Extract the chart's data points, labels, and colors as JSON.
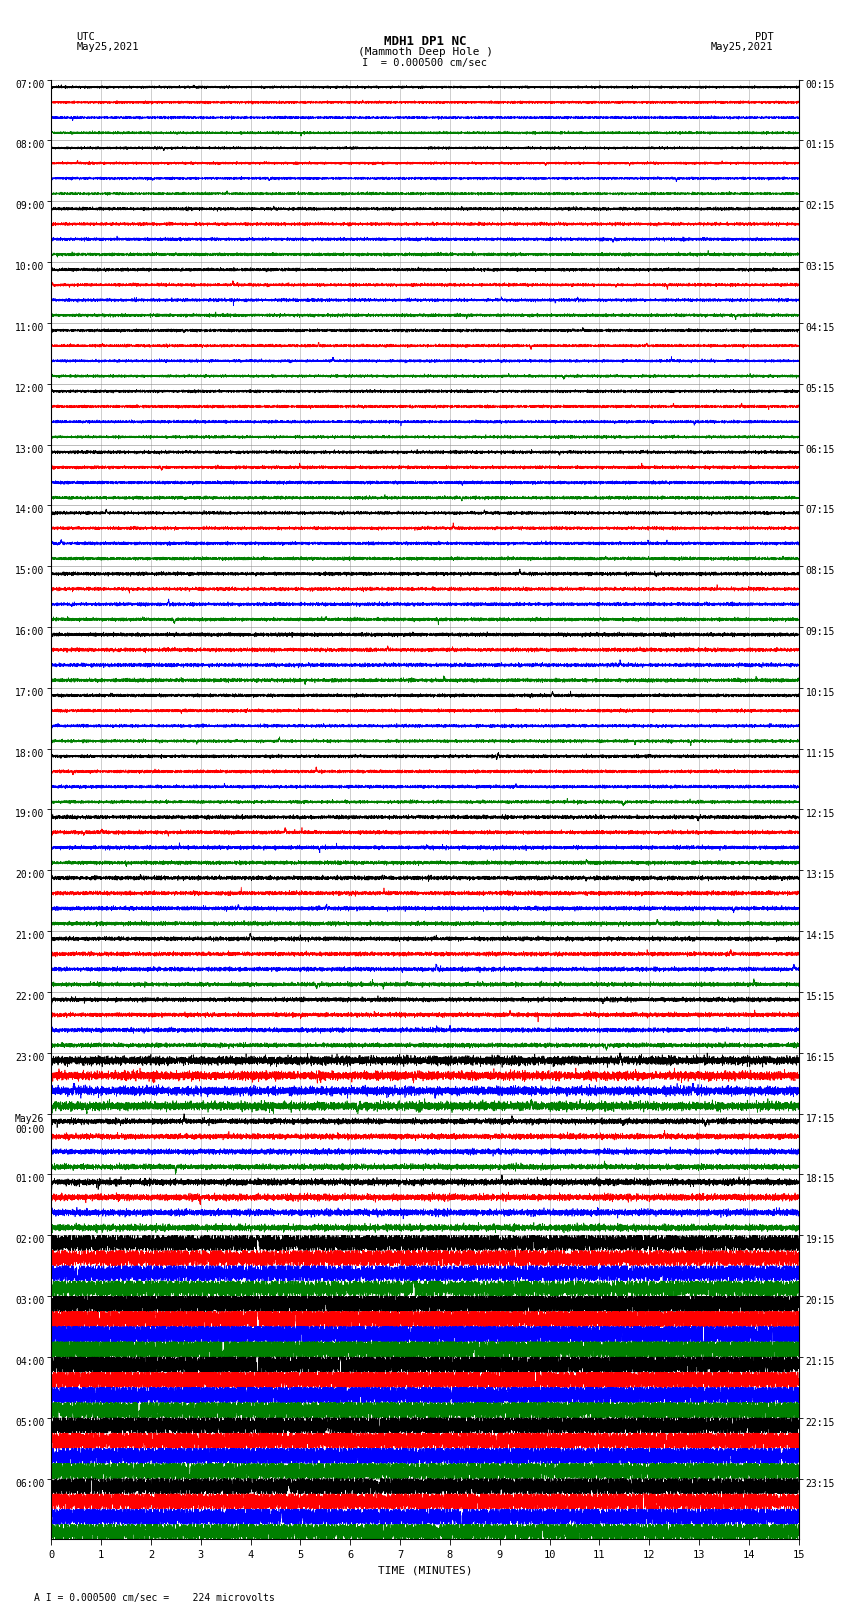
{
  "title_line1": "MDH1 DP1 NC",
  "title_line2": "(Mammoth Deep Hole )",
  "scale_label": "I  = 0.000500 cm/sec",
  "footer_label": "A I = 0.000500 cm/sec =    224 microvolts",
  "left_header1": "UTC",
  "left_header2": "May25,2021",
  "right_header1": "PDT",
  "right_header2": "May25,2021",
  "xlabel": "TIME (MINUTES)",
  "utc_labels": [
    "07:00",
    "08:00",
    "09:00",
    "10:00",
    "11:00",
    "12:00",
    "13:00",
    "14:00",
    "15:00",
    "16:00",
    "17:00",
    "18:00",
    "19:00",
    "20:00",
    "21:00",
    "22:00",
    "23:00",
    "May26\n00:00",
    "01:00",
    "02:00",
    "03:00",
    "04:00",
    "05:00",
    "06:00"
  ],
  "pdt_labels": [
    "00:15",
    "01:15",
    "02:15",
    "03:15",
    "04:15",
    "05:15",
    "06:15",
    "07:15",
    "08:15",
    "09:15",
    "10:15",
    "11:15",
    "12:15",
    "13:15",
    "14:15",
    "15:15",
    "16:15",
    "17:15",
    "18:15",
    "19:15",
    "20:15",
    "21:15",
    "22:15",
    "23:15"
  ],
  "trace_colors": [
    "black",
    "red",
    "blue",
    "green"
  ],
  "n_hours": 24,
  "n_traces_per_hour": 4,
  "noise_seed": 42,
  "background_color": "white",
  "grid_color": "#aaaaaa",
  "xmin": 0,
  "xmax": 15,
  "n_points": 9000,
  "amplitude_profile": [
    0.08,
    0.08,
    0.1,
    0.1,
    0.09,
    0.09,
    0.1,
    0.1,
    0.11,
    0.12,
    0.1,
    0.1,
    0.12,
    0.13,
    0.13,
    0.14,
    0.3,
    0.18,
    0.22,
    0.7,
    1.0,
    0.9,
    0.85,
    0.8
  ]
}
